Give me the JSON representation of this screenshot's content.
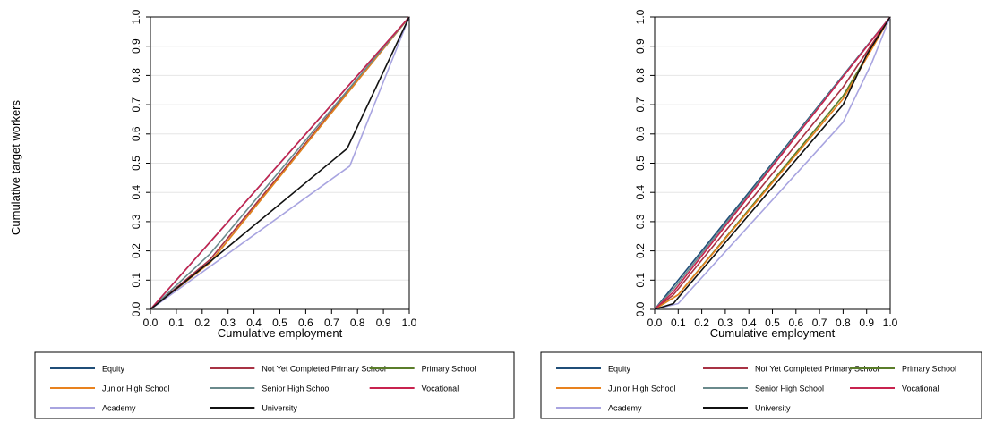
{
  "chart_data": [
    {
      "type": "line",
      "xlabel": "Cumulative employment",
      "ylabel": "Cumulative target workers",
      "xlim": [
        0,
        1
      ],
      "ylim": [
        0,
        1
      ],
      "xticks": [
        "0.0",
        "0.1",
        "0.2",
        "0.3",
        "0.4",
        "0.5",
        "0.6",
        "0.7",
        "0.8",
        "0.9",
        "1.0"
      ],
      "yticks": [
        "0.0",
        "0.1",
        "0.2",
        "0.3",
        "0.4",
        "0.5",
        "0.6",
        "0.7",
        "0.8",
        "0.9",
        "1.0"
      ],
      "grid": true,
      "legend_position": "bottom",
      "series": [
        {
          "name": "Equity",
          "color": "#1f4e79",
          "points": [
            [
              0,
              0
            ],
            [
              1,
              1
            ]
          ]
        },
        {
          "name": "Not Yet Completed Primary School",
          "color": "#a83244",
          "points": [
            [
              0,
              0
            ],
            [
              0.23,
              0.17
            ],
            [
              1,
              1
            ]
          ]
        },
        {
          "name": "Primary School",
          "color": "#5a7d2a",
          "points": [
            [
              0,
              0
            ],
            [
              0.23,
              0.16
            ],
            [
              1,
              1
            ]
          ]
        },
        {
          "name": "Junior High School",
          "color": "#e8821e",
          "points": [
            [
              0,
              0
            ],
            [
              0.23,
              0.16
            ],
            [
              1,
              1
            ]
          ]
        },
        {
          "name": "Senior High School",
          "color": "#6a8a8c",
          "points": [
            [
              0,
              0
            ],
            [
              0.23,
              0.19
            ],
            [
              1,
              1
            ]
          ]
        },
        {
          "name": "Vocational",
          "color": "#c8234f",
          "points": [
            [
              0,
              0
            ],
            [
              1,
              1
            ]
          ]
        },
        {
          "name": "Academy",
          "color": "#a8a4e0",
          "points": [
            [
              0,
              0
            ],
            [
              0.77,
              0.49
            ],
            [
              1,
              1
            ]
          ]
        },
        {
          "name": "University",
          "color": "#111111",
          "points": [
            [
              0,
              0
            ],
            [
              0.24,
              0.17
            ],
            [
              0.76,
              0.55
            ],
            [
              1,
              1
            ]
          ]
        }
      ]
    },
    {
      "type": "line",
      "xlabel": "Cumulative employment",
      "ylabel": "",
      "xlim": [
        0,
        1
      ],
      "ylim": [
        0,
        1
      ],
      "xticks": [
        "0.0",
        "0.1",
        "0.2",
        "0.3",
        "0.4",
        "0.5",
        "0.6",
        "0.7",
        "0.8",
        "0.9",
        "1.0"
      ],
      "yticks": [
        "0.0",
        "0.1",
        "0.2",
        "0.3",
        "0.4",
        "0.5",
        "0.6",
        "0.7",
        "0.8",
        "0.9",
        "1.0"
      ],
      "grid": true,
      "legend_position": "bottom",
      "series": [
        {
          "name": "Equity",
          "color": "#1f4e79",
          "points": [
            [
              0,
              0
            ],
            [
              1,
              1
            ]
          ]
        },
        {
          "name": "Not Yet Completed Primary School",
          "color": "#a83244",
          "points": [
            [
              0,
              0
            ],
            [
              0.08,
              0.05
            ],
            [
              0.8,
              0.76
            ],
            [
              1,
              1
            ]
          ]
        },
        {
          "name": "Primary School",
          "color": "#5a7d2a",
          "points": [
            [
              0,
              0
            ],
            [
              0.1,
              0.05
            ],
            [
              0.8,
              0.73
            ],
            [
              1,
              1
            ]
          ]
        },
        {
          "name": "Junior High School",
          "color": "#e8821e",
          "points": [
            [
              0,
              0
            ],
            [
              0.1,
              0.05
            ],
            [
              0.8,
              0.72
            ],
            [
              1,
              1
            ]
          ]
        },
        {
          "name": "Senior High School",
          "color": "#6a8a8c",
          "points": [
            [
              0,
              0
            ],
            [
              0.08,
              0.07
            ],
            [
              1,
              1
            ]
          ]
        },
        {
          "name": "Vocational",
          "color": "#c8234f",
          "points": [
            [
              0,
              0
            ],
            [
              0.08,
              0.06
            ],
            [
              1,
              1
            ]
          ]
        },
        {
          "name": "Academy",
          "color": "#a8a4e0",
          "points": [
            [
              0,
              0
            ],
            [
              0.1,
              0.02
            ],
            [
              0.8,
              0.64
            ],
            [
              0.92,
              0.84
            ],
            [
              1,
              1
            ]
          ]
        },
        {
          "name": "University",
          "color": "#111111",
          "points": [
            [
              0,
              0
            ],
            [
              0.08,
              0.02
            ],
            [
              0.1,
              0.04
            ],
            [
              0.8,
              0.7
            ],
            [
              0.9,
              0.87
            ],
            [
              1,
              1
            ]
          ]
        }
      ]
    }
  ],
  "legend_columns": [
    [
      "Equity",
      "Junior High School",
      "Academy"
    ],
    [
      "Not Yet Completed Primary School",
      "Senior High School",
      "University"
    ],
    [
      "Primary School",
      "Vocational"
    ]
  ]
}
